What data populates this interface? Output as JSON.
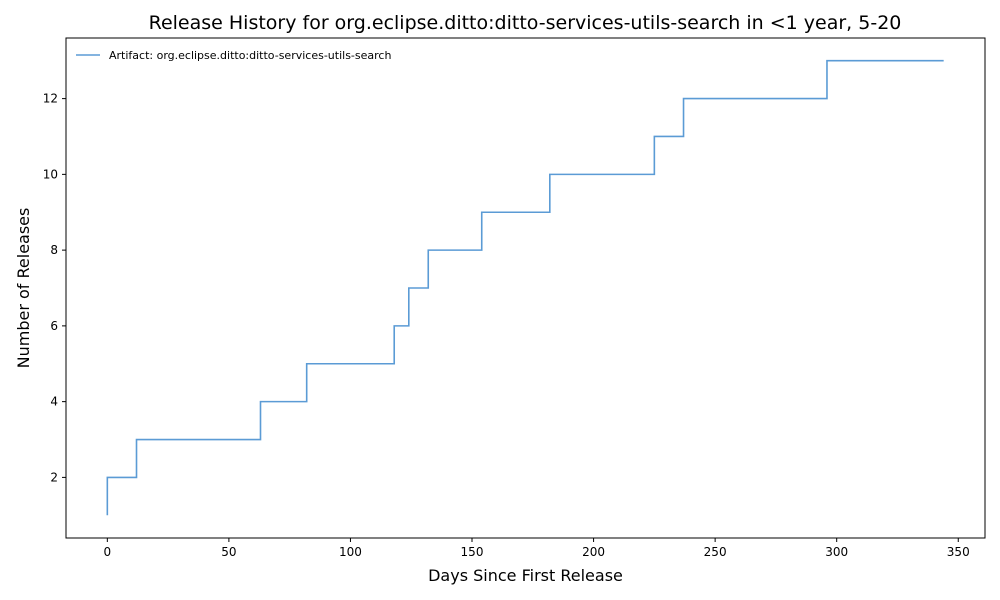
{
  "chart_data": {
    "type": "line",
    "drawstyle": "steps-post",
    "title": "Release History for org.eclipse.ditto:ditto-services-utils-search in <1 year, 5-20",
    "xlabel": "Days Since First Release",
    "ylabel": "Number of Releases",
    "xlim": [
      -17,
      361
    ],
    "ylim": [
      0.4,
      13.6
    ],
    "xticks": [
      0,
      50,
      100,
      150,
      200,
      250,
      300,
      350
    ],
    "yticks": [
      2,
      4,
      6,
      8,
      10,
      12
    ],
    "grid": false,
    "legend_position": "top-left",
    "series": [
      {
        "name": "Artifact: org.eclipse.ditto:ditto-services-utils-search",
        "color": "#5b9bd5",
        "x": [
          0,
          0,
          12,
          63,
          82,
          118,
          124,
          132,
          154,
          182,
          225,
          237,
          296,
          344
        ],
        "y": [
          1,
          2,
          3,
          4,
          5,
          6,
          7,
          8,
          9,
          10,
          11,
          12,
          13,
          13
        ]
      }
    ]
  }
}
